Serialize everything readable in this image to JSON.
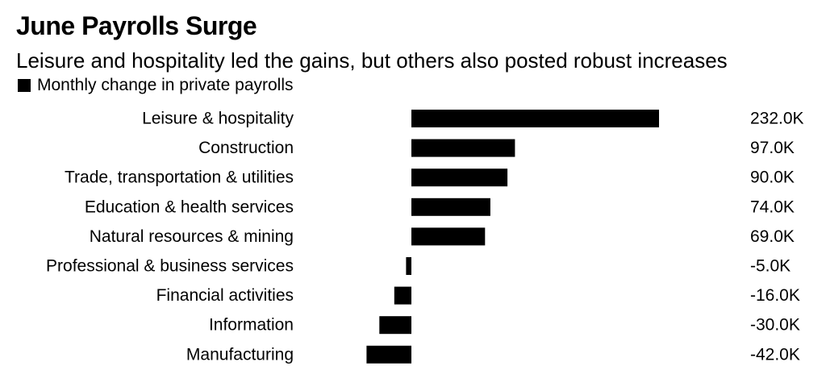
{
  "chart_title": "June Payrolls Surge",
  "chart_subtitle": "Leisure and hospitality led the gains, but others also posted robust increases",
  "legend": {
    "label": "Monthly change in private payrolls",
    "color": "#000000"
  },
  "chart_data": {
    "type": "bar",
    "orientation": "horizontal",
    "title": "June Payrolls Surge",
    "subtitle": "Leisure and hospitality led the gains, but others also posted robust increases",
    "categories": [
      "Leisure & hospitality",
      "Construction",
      "Trade, transportation & utilities",
      "Education & health services",
      "Natural resources & mining",
      "Professional & business services",
      "Financial activities",
      "Information",
      "Manufacturing"
    ],
    "series": [
      {
        "name": "Monthly change in private payrolls",
        "values": [
          232,
          97,
          90,
          74,
          69,
          -5,
          -16,
          -30,
          -42
        ],
        "value_labels": [
          "232.0K",
          "97.0K",
          "90.0K",
          "74.0K",
          "69.0K",
          "-5.0K",
          "-16.0K",
          "-30.0K",
          "-42.0K"
        ],
        "color": "#000000"
      }
    ],
    "xlim": [
      -42,
      232
    ],
    "grid": false,
    "legend_position": "top-left"
  }
}
